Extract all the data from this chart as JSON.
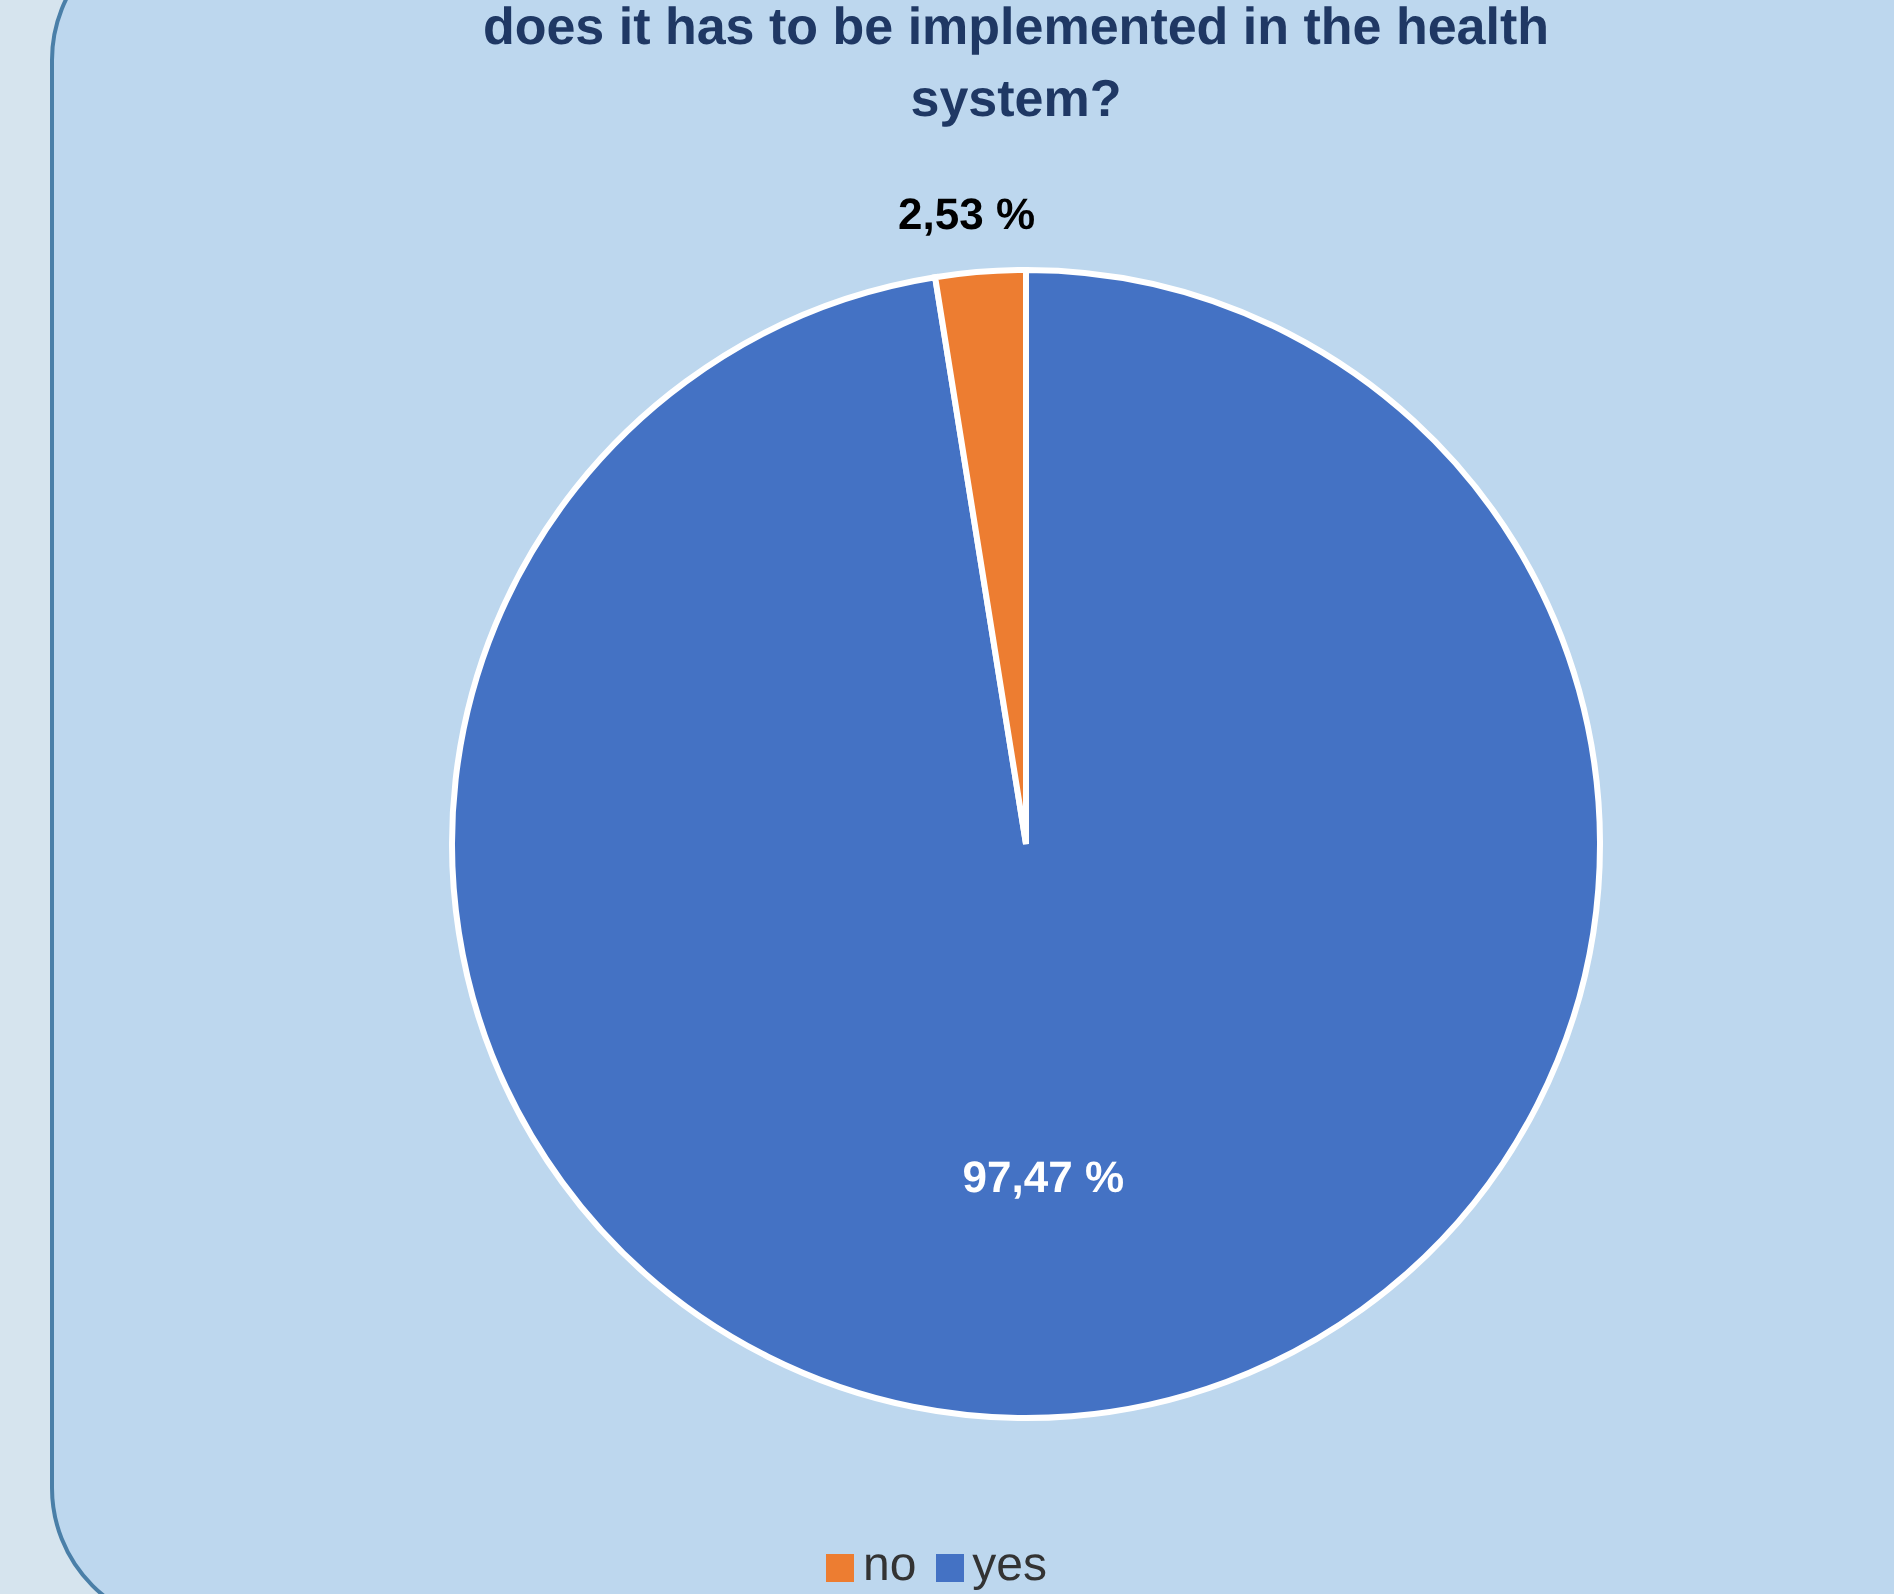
{
  "chart_data": {
    "type": "pie",
    "title": "does it has to be implemented in the health system?",
    "categories": [
      "yes",
      "no"
    ],
    "values": [
      97.47,
      2.53
    ],
    "colors": [
      "#4472c4",
      "#ed7d31"
    ],
    "value_labels": [
      "97,47 %",
      "2,53 %"
    ],
    "legend": "bottom"
  }
}
